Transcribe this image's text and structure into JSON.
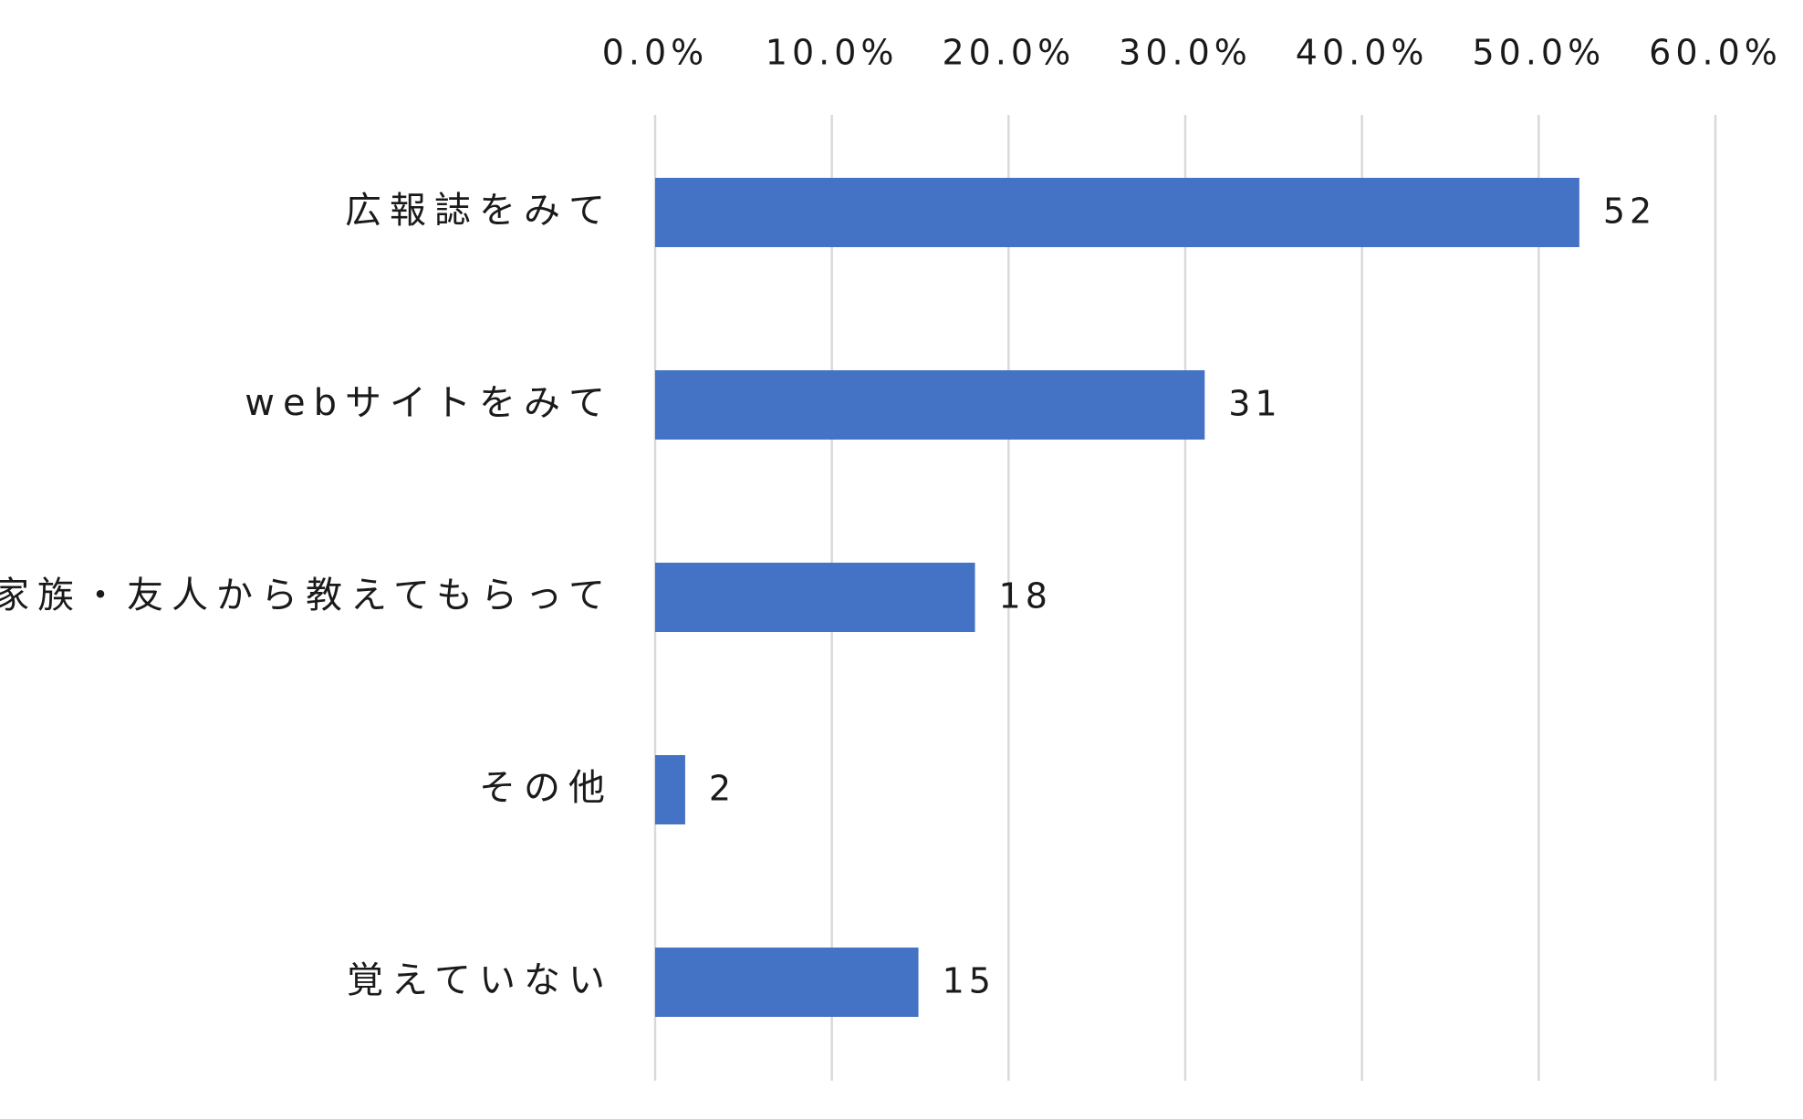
{
  "chart_data": {
    "type": "bar",
    "orientation": "horizontal",
    "categories": [
      "広報誌をみて",
      "webサイトをみて",
      "家族・友人から教えてもらって",
      "その他",
      "覚えていない"
    ],
    "values": [
      52.3,
      31.1,
      18.1,
      1.7,
      14.9
    ],
    "data_labels": [
      "52",
      "31",
      "18",
      "2",
      "15"
    ],
    "xlim": [
      0,
      60
    ],
    "x_ticks": [
      0,
      10,
      20,
      30,
      40,
      50,
      60
    ],
    "x_tick_labels": [
      "0.0%",
      "10.0%",
      "20.0%",
      "30.0%",
      "40.0%",
      "50.0%",
      "60.0%"
    ],
    "x_axis_position": "top",
    "grid": true,
    "title": "",
    "xlabel": "",
    "ylabel": "",
    "colors": {
      "bar": "#4472C4",
      "grid": "#D9D9D9",
      "text": "#1A1A1A"
    }
  }
}
